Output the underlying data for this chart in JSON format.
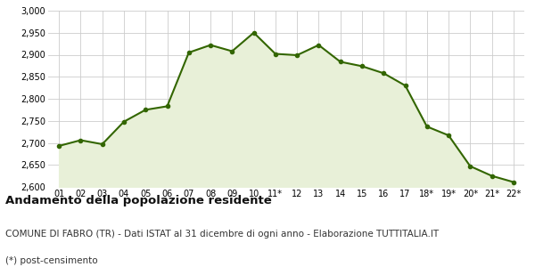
{
  "x_labels": [
    "01",
    "02",
    "03",
    "04",
    "05",
    "06",
    "07",
    "08",
    "09",
    "10",
    "11*",
    "12",
    "13",
    "14",
    "15",
    "16",
    "17",
    "18*",
    "19*",
    "20*",
    "21*",
    "22*"
  ],
  "y_values": [
    2693,
    2706,
    2697,
    2748,
    2775,
    2783,
    2905,
    2922,
    2908,
    2950,
    2902,
    2899,
    2922,
    2884,
    2874,
    2858,
    2830,
    2737,
    2717,
    2647,
    2625,
    2611
  ],
  "ylim": [
    2600,
    3000
  ],
  "yticks": [
    2600,
    2650,
    2700,
    2750,
    2800,
    2850,
    2900,
    2950,
    3000
  ],
  "line_color": "#336600",
  "fill_color": "#e8f0d8",
  "marker": "o",
  "marker_size": 3,
  "line_width": 1.5,
  "title": "Andamento della popolazione residente",
  "subtitle": "COMUNE DI FABRO (TR) - Dati ISTAT al 31 dicembre di ogni anno - Elaborazione TUTTITALIA.IT",
  "footnote": "(*) post-censimento",
  "bg_color": "#ffffff",
  "grid_color": "#cccccc",
  "title_fontsize": 9.5,
  "subtitle_fontsize": 7.5,
  "footnote_fontsize": 7.5,
  "tick_fontsize": 7
}
